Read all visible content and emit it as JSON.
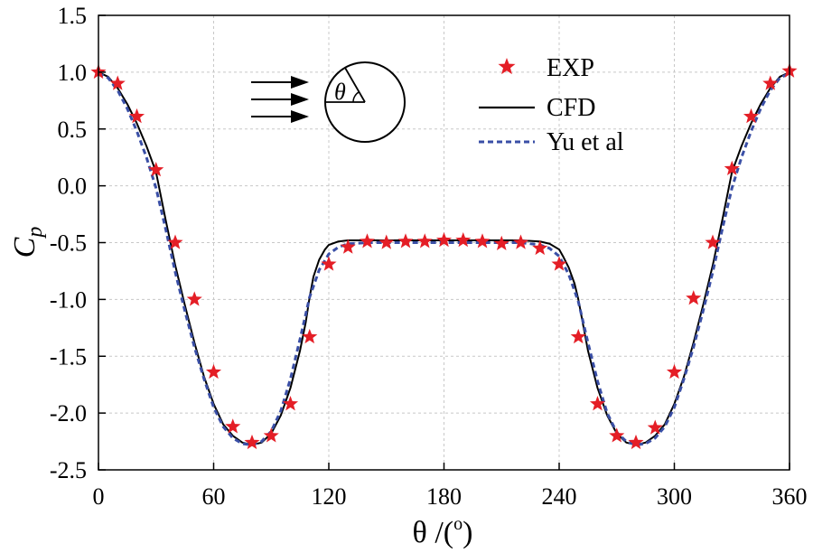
{
  "chart_data": {
    "type": "line",
    "title": "",
    "xlabel": "θ /(°)",
    "xlabel_main": "θ /(",
    "xlabel_unit": "o",
    "xlabel_close": ")",
    "ylabel": "Cp",
    "ylabel_main": "C",
    "ylabel_sub": "p",
    "xlim": [
      0,
      360
    ],
    "ylim": [
      -2.5,
      1.5
    ],
    "xticks": [
      0,
      60,
      120,
      180,
      240,
      300,
      360
    ],
    "yticks": [
      1.5,
      1.0,
      0.5,
      0.0,
      -0.5,
      -1.0,
      -1.5,
      -2.0,
      -2.5
    ],
    "ytick_labels": [
      "1.5",
      "1.0",
      "0.5",
      "0.0",
      "-0.5",
      "-1.0",
      "-1.5",
      "-2.0",
      "-2.5"
    ],
    "grid": true,
    "legend_position": "top-right",
    "series": [
      {
        "name": "EXP",
        "style": "markers-star",
        "color": "#e41e26",
        "x": [
          0,
          10,
          20,
          30,
          40,
          50,
          60,
          70,
          80,
          90,
          100,
          110,
          120,
          130,
          140,
          150,
          160,
          170,
          180,
          190,
          200,
          210,
          220,
          230,
          240,
          250,
          260,
          270,
          280,
          290,
          300,
          310,
          320,
          330,
          340,
          350,
          360
        ],
        "y": [
          1.0,
          0.9,
          0.61,
          0.14,
          -0.5,
          -1.0,
          -1.64,
          -2.12,
          -2.26,
          -2.2,
          -1.92,
          -1.33,
          -0.69,
          -0.54,
          -0.49,
          -0.5,
          -0.49,
          -0.49,
          -0.48,
          -0.48,
          -0.49,
          -0.51,
          -0.5,
          -0.55,
          -0.69,
          -1.33,
          -1.92,
          -2.2,
          -2.26,
          -2.13,
          -1.64,
          -0.99,
          -0.5,
          0.15,
          0.61,
          0.9,
          1.01
        ]
      },
      {
        "name": "CFD",
        "style": "solid",
        "color": "#000000",
        "x": [
          0,
          5,
          10,
          15,
          20,
          25,
          30,
          35,
          40,
          45,
          50,
          55,
          60,
          65,
          70,
          75,
          80,
          85,
          90,
          95,
          100,
          105,
          108,
          110,
          112,
          115,
          118,
          120,
          125,
          130,
          140,
          150,
          160,
          170,
          180,
          190,
          200,
          210,
          220,
          230,
          235,
          240,
          242,
          245,
          248,
          250,
          252,
          255,
          260,
          265,
          270,
          275,
          280,
          285,
          290,
          295,
          300,
          305,
          310,
          315,
          320,
          325,
          330,
          335,
          340,
          345,
          350,
          355,
          360
        ],
        "y": [
          1.0,
          0.96,
          0.86,
          0.72,
          0.55,
          0.35,
          0.12,
          -0.3,
          -0.7,
          -1.05,
          -1.38,
          -1.68,
          -1.92,
          -2.1,
          -2.2,
          -2.26,
          -2.28,
          -2.26,
          -2.18,
          -2.02,
          -1.78,
          -1.45,
          -1.2,
          -0.98,
          -0.8,
          -0.65,
          -0.56,
          -0.52,
          -0.49,
          -0.48,
          -0.48,
          -0.48,
          -0.48,
          -0.48,
          -0.48,
          -0.48,
          -0.48,
          -0.48,
          -0.48,
          -0.49,
          -0.51,
          -0.56,
          -0.62,
          -0.72,
          -0.86,
          -1.0,
          -1.18,
          -1.45,
          -1.78,
          -2.02,
          -2.18,
          -2.26,
          -2.28,
          -2.26,
          -2.2,
          -2.1,
          -1.92,
          -1.68,
          -1.38,
          -1.05,
          -0.7,
          -0.3,
          0.12,
          0.35,
          0.55,
          0.72,
          0.86,
          0.96,
          1.0
        ]
      },
      {
        "name": "Yu et al",
        "style": "dashed",
        "color": "#3a4fa6",
        "x": [
          0,
          5,
          10,
          15,
          20,
          25,
          30,
          35,
          40,
          45,
          50,
          55,
          60,
          65,
          70,
          75,
          80,
          85,
          90,
          95,
          100,
          105,
          110,
          115,
          120,
          125,
          130,
          140,
          150,
          160,
          170,
          180,
          190,
          200,
          210,
          220,
          230,
          235,
          240,
          245,
          250,
          255,
          260,
          265,
          270,
          275,
          280,
          285,
          290,
          295,
          300,
          305,
          310,
          315,
          320,
          325,
          330,
          335,
          340,
          345,
          350,
          355,
          360
        ],
        "y": [
          0.99,
          0.95,
          0.84,
          0.68,
          0.48,
          0.25,
          -0.02,
          -0.38,
          -0.76,
          -1.1,
          -1.42,
          -1.7,
          -1.95,
          -2.12,
          -2.22,
          -2.27,
          -2.28,
          -2.25,
          -2.16,
          -1.98,
          -1.7,
          -1.35,
          -0.98,
          -0.74,
          -0.6,
          -0.54,
          -0.51,
          -0.5,
          -0.5,
          -0.5,
          -0.5,
          -0.5,
          -0.5,
          -0.5,
          -0.5,
          -0.5,
          -0.52,
          -0.55,
          -0.62,
          -0.78,
          -1.02,
          -1.38,
          -1.72,
          -2.0,
          -2.17,
          -2.25,
          -2.28,
          -2.27,
          -2.22,
          -2.12,
          -1.95,
          -1.7,
          -1.42,
          -1.1,
          -0.76,
          -0.38,
          -0.02,
          0.25,
          0.48,
          0.68,
          0.84,
          0.95,
          0.99
        ]
      }
    ],
    "inset": {
      "description_label": "θ",
      "arrows": 3
    }
  }
}
